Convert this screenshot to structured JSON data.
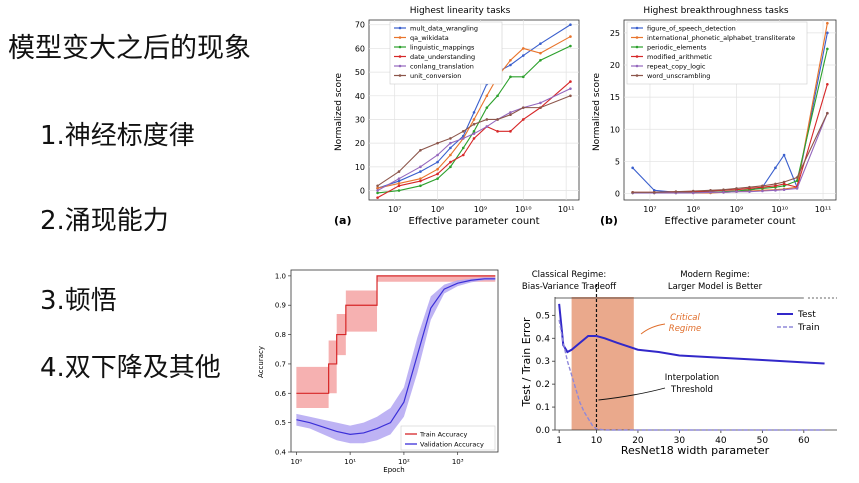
{
  "slide": {
    "title": "模型变大之后的现象",
    "items": [
      "1.神经标度律",
      "2.涌现能力",
      "3.顿悟",
      "4.双下降及其他"
    ]
  },
  "colors": {
    "series": [
      "#3a5fcd",
      "#e8742c",
      "#2ca02c",
      "#d62728",
      "#9467bd",
      "#8c564b"
    ],
    "train_red": "#d62728",
    "train_band": "#f4a3a3",
    "val_blue": "#3b2fd8",
    "val_band": "#b3a6f2",
    "critical_fill": "#e8a07f",
    "critical_text": "#e06d2a",
    "dd_line": "#3228c9",
    "dd_train": "#8f88d9"
  },
  "chart_data": [
    {
      "type": "line",
      "panel_label": "(a)",
      "title": "Highest linearity tasks",
      "xlabel": "Effective parameter count",
      "ylabel": "Normalized score",
      "xscale": "log10",
      "xlim": [
        6.4,
        11.3
      ],
      "ylim": [
        -4,
        72
      ],
      "x_ticks": [
        7,
        8,
        9,
        10,
        11
      ],
      "x_tick_labels": [
        "10⁷",
        "10⁸",
        "10⁹",
        "10¹⁰",
        "10¹¹"
      ],
      "y_ticks": [
        0,
        10,
        20,
        30,
        40,
        50,
        60,
        70
      ],
      "x": [
        6.6,
        7.1,
        7.6,
        8.0,
        8.3,
        8.6,
        8.85,
        9.15,
        9.4,
        9.7,
        10.0,
        10.4,
        11.1
      ],
      "series": [
        {
          "name": "mult_data_wrangling",
          "values": [
            1,
            4,
            8,
            12,
            18,
            23,
            33,
            45,
            50,
            53,
            57,
            62,
            70
          ]
        },
        {
          "name": "qa_wikidata",
          "values": [
            1,
            3,
            5,
            9,
            15,
            22,
            30,
            40,
            48,
            55,
            60,
            58,
            65
          ]
        },
        {
          "name": "linguistic_mappings",
          "values": [
            -1,
            0,
            2,
            5,
            10,
            18,
            25,
            35,
            40,
            48,
            48,
            55,
            61
          ]
        },
        {
          "name": "date_understanding",
          "values": [
            -3,
            2,
            4,
            7,
            12,
            15,
            22,
            27,
            25,
            25,
            30,
            35,
            46
          ]
        },
        {
          "name": "conlang_translation",
          "values": [
            0,
            5,
            10,
            15,
            20,
            22,
            24,
            27,
            30,
            33,
            35,
            37,
            43
          ]
        },
        {
          "name": "unit_conversion",
          "values": [
            2,
            8,
            17,
            20,
            22,
            25,
            28,
            30,
            30,
            32,
            35,
            35,
            40
          ]
        }
      ]
    },
    {
      "type": "line",
      "panel_label": "(b)",
      "title": "Highest breakthroughness tasks",
      "xlabel": "Effective parameter count",
      "ylabel": "Normalized score",
      "xscale": "log10",
      "xlim": [
        6.4,
        11.3
      ],
      "ylim": [
        -1,
        27
      ],
      "x_ticks": [
        7,
        8,
        9,
        10,
        11
      ],
      "x_tick_labels": [
        "10⁷",
        "10⁸",
        "10⁹",
        "10¹⁰",
        "10¹¹"
      ],
      "y_ticks": [
        0,
        5,
        10,
        15,
        20,
        25
      ],
      "x": [
        6.6,
        7.1,
        7.6,
        8.0,
        8.4,
        8.7,
        9.0,
        9.3,
        9.6,
        9.9,
        10.1,
        10.4,
        11.1
      ],
      "series": [
        {
          "name": "figure_of_speech_detection",
          "values": [
            4,
            0.5,
            0.2,
            0.2,
            0.3,
            0.2,
            0.3,
            0.5,
            1.0,
            4.0,
            6.0,
            1.0,
            25
          ]
        },
        {
          "name": "international_phonetic_alphabet_transliterate",
          "values": [
            0.1,
            0.1,
            0.1,
            0.1,
            0.1,
            0.2,
            0.3,
            0.4,
            0.5,
            0.6,
            0.7,
            1.0,
            26.5
          ]
        },
        {
          "name": "periodic_elements",
          "values": [
            0.1,
            0.1,
            0.1,
            0.2,
            0.2,
            0.3,
            0.4,
            0.6,
            0.8,
            1.0,
            1.2,
            2.0,
            22.5
          ]
        },
        {
          "name": "modified_arithmetic",
          "values": [
            0.2,
            0.2,
            0.3,
            0.3,
            0.4,
            0.5,
            0.6,
            0.8,
            1.0,
            1.2,
            1.5,
            1.0,
            17
          ]
        },
        {
          "name": "repeat_copy_logic",
          "values": [
            0.1,
            0.1,
            0.1,
            0.1,
            0.2,
            0.2,
            0.3,
            0.3,
            0.4,
            0.5,
            0.6,
            0.8,
            12.5
          ]
        },
        {
          "name": "word_unscrambling",
          "values": [
            0.2,
            0.2,
            0.3,
            0.4,
            0.5,
            0.6,
            0.8,
            1.0,
            1.2,
            1.5,
            1.8,
            2.5,
            12.5
          ]
        }
      ]
    },
    {
      "type": "line",
      "title": "",
      "xlabel": "Epoch",
      "ylabel": "Accuracy",
      "xscale": "log10",
      "xlim": [
        -0.1,
        3.75
      ],
      "ylim": [
        0.4,
        1.02
      ],
      "x_ticks": [
        0,
        1,
        2,
        3
      ],
      "x_tick_labels": [
        "10⁰",
        "10¹",
        "10²",
        "10³"
      ],
      "y_ticks": [
        0.4,
        0.5,
        0.6,
        0.7,
        0.8,
        0.9,
        1.0
      ],
      "y_tick_labels": [
        "0.4",
        "0.5",
        "0.6",
        "0.7",
        "0.8",
        "0.9",
        "1.0"
      ],
      "legend": [
        "Train Accuracy",
        "Validation Accuracy"
      ],
      "legend_position": "bottom-right",
      "train": {
        "x": [
          0,
          0.6,
          0.6,
          0.75,
          0.75,
          0.92,
          0.92,
          1.5,
          1.5,
          3.7
        ],
        "y": [
          0.6,
          0.6,
          0.7,
          0.7,
          0.8,
          0.8,
          0.9,
          0.9,
          1.0,
          1.0
        ],
        "band_low": [
          0.55,
          0.55,
          0.6,
          0.6,
          0.73,
          0.73,
          0.81,
          0.81,
          0.98,
          0.98
        ],
        "band_high": [
          0.69,
          0.69,
          0.78,
          0.78,
          0.87,
          0.87,
          0.95,
          0.95,
          1.0,
          1.0
        ]
      },
      "validation": {
        "x": [
          0,
          0.25,
          0.5,
          0.75,
          1.0,
          1.25,
          1.5,
          1.75,
          2.0,
          2.25,
          2.5,
          2.75,
          3.0,
          3.25,
          3.5,
          3.7
        ],
        "y": [
          0.51,
          0.5,
          0.485,
          0.47,
          0.46,
          0.465,
          0.48,
          0.5,
          0.57,
          0.73,
          0.89,
          0.955,
          0.975,
          0.985,
          0.99,
          0.99
        ],
        "band_low": [
          0.49,
          0.48,
          0.46,
          0.44,
          0.43,
          0.43,
          0.44,
          0.46,
          0.52,
          0.67,
          0.85,
          0.94,
          0.965,
          0.978,
          0.985,
          0.985
        ],
        "band_high": [
          0.53,
          0.52,
          0.51,
          0.5,
          0.49,
          0.5,
          0.52,
          0.55,
          0.62,
          0.79,
          0.93,
          0.97,
          0.985,
          0.99,
          0.995,
          0.995
        ]
      }
    },
    {
      "type": "line",
      "title": "",
      "xlabel": "ResNet18 width parameter",
      "ylabel": "Test / Train Error",
      "xlim": [
        0,
        68
      ],
      "ylim": [
        0,
        0.58
      ],
      "x_ticks": [
        1,
        10,
        20,
        30,
        40,
        50,
        60
      ],
      "y_ticks": [
        0.0,
        0.1,
        0.2,
        0.3,
        0.4,
        0.5
      ],
      "y_tick_labels": [
        "0.0",
        "0.1",
        "0.2",
        "0.3",
        "0.4",
        "0.5"
      ],
      "legend": [
        "Test",
        "Train"
      ],
      "legend_position": "top-right",
      "critical_region": [
        4,
        19
      ],
      "interpolation_threshold": 10,
      "test": {
        "x": [
          1,
          2,
          3,
          4,
          6,
          8,
          10,
          12,
          15,
          20,
          25,
          30,
          40,
          50,
          60,
          65
        ],
        "y": [
          0.55,
          0.37,
          0.34,
          0.35,
          0.38,
          0.41,
          0.41,
          0.4,
          0.38,
          0.35,
          0.34,
          0.325,
          0.315,
          0.305,
          0.295,
          0.29
        ]
      },
      "train": {
        "x": [
          1,
          2,
          3,
          4,
          5,
          6,
          7,
          8,
          9,
          10,
          12,
          15,
          20,
          30,
          65
        ],
        "y": [
          0.48,
          0.38,
          0.3,
          0.24,
          0.18,
          0.12,
          0.08,
          0.05,
          0.02,
          0.005,
          0.0,
          0.0,
          0.0,
          0.0,
          0.0
        ]
      },
      "annotations": {
        "classical": [
          "Classical Regime:",
          "Bias-Variance Tradeoff"
        ],
        "modern": [
          "Modern Regime:",
          "Larger Model is Better"
        ],
        "critical": [
          "Critical",
          "Regime"
        ],
        "interpolation": [
          "Interpolation",
          "Threshold"
        ]
      }
    }
  ]
}
